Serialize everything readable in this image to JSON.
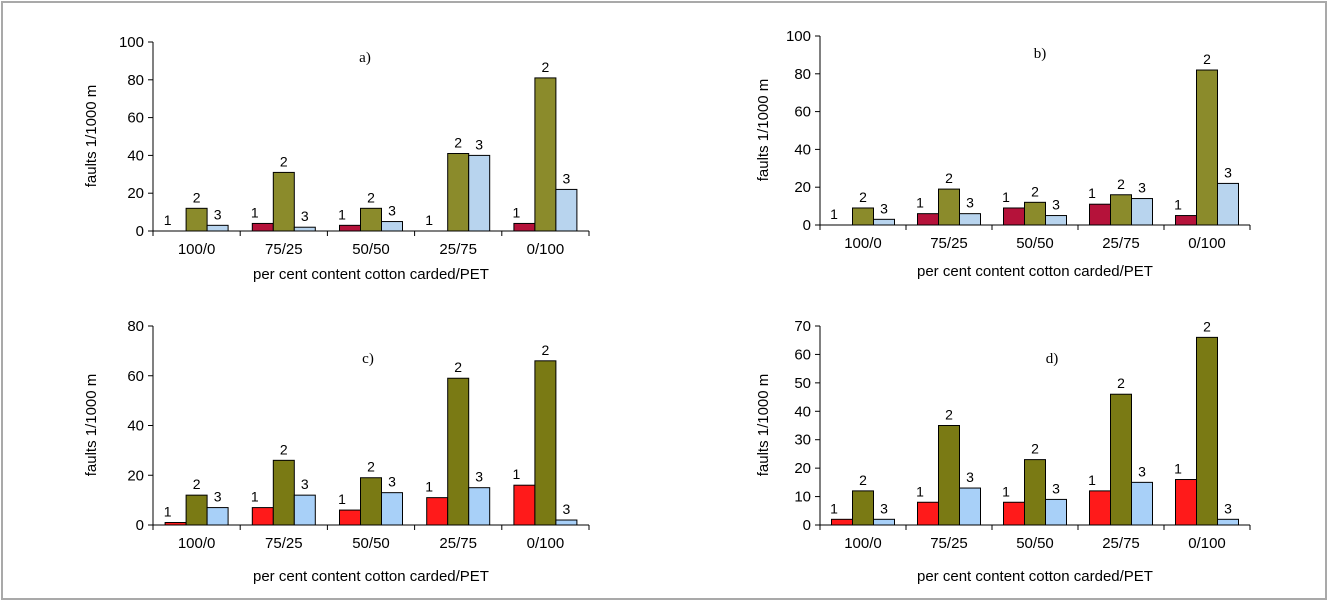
{
  "chart_data": [
    {
      "type": "bar",
      "title": "a)",
      "xlabel": "per cent content cotton carded/PET",
      "ylabel": "faults 1/1000 m",
      "ylim": [
        0,
        100
      ],
      "yticks": [
        0,
        20,
        40,
        60,
        80,
        100
      ],
      "categories": [
        "100/0",
        "75/25",
        "50/50",
        "25/75",
        "0/100"
      ],
      "colors": [
        "#b5123a",
        "#8b8b2b",
        "#b8d4ee"
      ],
      "series": [
        {
          "values": [
            0,
            4,
            3,
            0,
            4
          ],
          "labels": [
            "1",
            "1",
            "1",
            "1",
            "1"
          ]
        },
        {
          "values": [
            12,
            31,
            12,
            41,
            81
          ],
          "labels": [
            "2",
            "2",
            "2",
            "2",
            "2"
          ]
        },
        {
          "values": [
            3,
            2,
            5,
            40,
            22
          ],
          "labels": [
            "3",
            "3",
            "3",
            "3",
            "3"
          ]
        }
      ]
    },
    {
      "type": "bar",
      "title": "b)",
      "xlabel": "per cent content cotton carded/PET",
      "ylabel": "faults 1/1000 m",
      "ylim": [
        0,
        100
      ],
      "yticks": [
        0,
        20,
        40,
        60,
        80,
        100
      ],
      "categories": [
        "100/0",
        "75/25",
        "50/50",
        "25/75",
        "0/100"
      ],
      "colors": [
        "#b5123a",
        "#8b8b2b",
        "#b8d4ee"
      ],
      "series": [
        {
          "values": [
            0,
            6,
            9,
            11,
            5
          ],
          "labels": [
            "1",
            "1",
            "1",
            "1",
            "1"
          ]
        },
        {
          "values": [
            9,
            19,
            12,
            16,
            82
          ],
          "labels": [
            "2",
            "2",
            "2",
            "2",
            "2"
          ]
        },
        {
          "values": [
            3,
            6,
            5,
            14,
            22
          ],
          "labels": [
            "3",
            "3",
            "3",
            "3",
            "3"
          ]
        }
      ]
    },
    {
      "type": "bar",
      "title": "c)",
      "xlabel": "per cent content cotton carded/PET",
      "ylabel": "faults 1/1000 m",
      "ylim": [
        0,
        80
      ],
      "yticks": [
        0,
        20,
        40,
        60,
        80
      ],
      "categories": [
        "100/0",
        "75/25",
        "50/50",
        "25/75",
        "0/100"
      ],
      "colors": [
        "#ff1a1a",
        "#7a7a14",
        "#a8d0f8"
      ],
      "series": [
        {
          "values": [
            1,
            7,
            6,
            11,
            16
          ],
          "labels": [
            "1",
            "1",
            "1",
            "1",
            "1"
          ]
        },
        {
          "values": [
            12,
            26,
            19,
            59,
            66
          ],
          "labels": [
            "2",
            "2",
            "2",
            "2",
            "2"
          ]
        },
        {
          "values": [
            7,
            12,
            13,
            15,
            2
          ],
          "labels": [
            "3",
            "3",
            "3",
            "3",
            "3"
          ]
        }
      ]
    },
    {
      "type": "bar",
      "title": "d)",
      "xlabel": "per cent content cotton carded/PET",
      "ylabel": "faults 1/1000 m",
      "ylim": [
        0,
        70
      ],
      "yticks": [
        0,
        10,
        20,
        30,
        40,
        50,
        60,
        70
      ],
      "categories": [
        "100/0",
        "75/25",
        "50/50",
        "25/75",
        "0/100"
      ],
      "colors": [
        "#ff1a1a",
        "#7a7a14",
        "#a8d0f8"
      ],
      "series": [
        {
          "values": [
            2,
            8,
            8,
            12,
            16
          ],
          "labels": [
            "1",
            "1",
            "1",
            "1",
            "1"
          ]
        },
        {
          "values": [
            12,
            35,
            23,
            46,
            66
          ],
          "labels": [
            "2",
            "2",
            "2",
            "2",
            "2"
          ]
        },
        {
          "values": [
            2,
            13,
            9,
            15,
            2
          ],
          "labels": [
            "3",
            "3",
            "3",
            "3",
            "3"
          ]
        }
      ]
    }
  ]
}
